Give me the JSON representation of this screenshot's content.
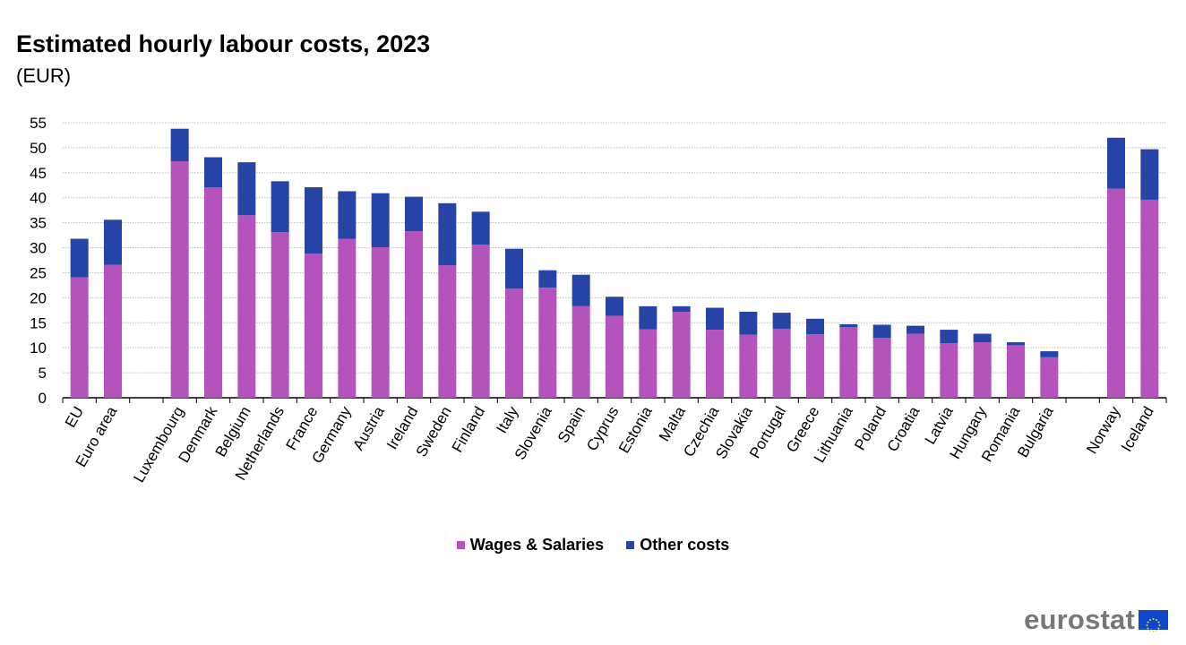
{
  "title": "Estimated hourly labour costs, 2023",
  "subtitle": "(EUR)",
  "colors": {
    "wages": "#b553bd",
    "other": "#2644a8",
    "grid": "#bfbfbf",
    "axis": "#000000"
  },
  "legend": {
    "wages_label": "Wages & Salaries",
    "other_label": "Other costs"
  },
  "logo": {
    "text": "eurostat",
    "icon": "eu-flag-icon"
  },
  "chart_data": {
    "type": "bar",
    "stacked": true,
    "categories": [
      "EU",
      "Euro area",
      "",
      "Luxembourg",
      "Denmark",
      "Belgium",
      "Netherlands",
      "France",
      "Germany",
      "Austria",
      "Ireland",
      "Sweden",
      "Finland",
      "Italy",
      "Slovenia",
      "Spain",
      "Cyprus",
      "Estonia",
      "Malta",
      "Czechia",
      "Slovakia",
      "Portugal",
      "Greece",
      "Lithuania",
      "Poland",
      "Croatia",
      "Latvia",
      "Hungary",
      "Romania",
      "Bulgaria",
      "",
      "Norway",
      "Iceland"
    ],
    "series": [
      {
        "name": "Wages & Salaries",
        "values": [
          24.1,
          26.6,
          null,
          47.3,
          42.1,
          36.5,
          33.1,
          28.8,
          31.8,
          30.1,
          33.3,
          26.5,
          30.6,
          21.8,
          22.0,
          18.3,
          16.4,
          13.7,
          17.2,
          13.6,
          12.6,
          13.8,
          12.7,
          14.1,
          12.0,
          12.8,
          10.9,
          11.1,
          10.5,
          8.1,
          null,
          41.8,
          39.6
        ]
      },
      {
        "name": "Other costs",
        "values": [
          7.7,
          9.0,
          null,
          6.5,
          6.0,
          10.6,
          10.2,
          13.3,
          9.5,
          10.8,
          6.9,
          12.4,
          6.6,
          8.0,
          3.5,
          6.3,
          3.8,
          4.6,
          1.1,
          4.4,
          4.6,
          3.2,
          3.1,
          0.6,
          2.6,
          1.6,
          2.7,
          1.7,
          0.6,
          1.2,
          null,
          10.2,
          10.1
        ]
      }
    ],
    "ylim": [
      0,
      55
    ],
    "yticks": [
      0,
      5,
      10,
      15,
      20,
      25,
      30,
      35,
      40,
      45,
      50,
      55
    ],
    "grid": true,
    "legend_position": "bottom"
  }
}
